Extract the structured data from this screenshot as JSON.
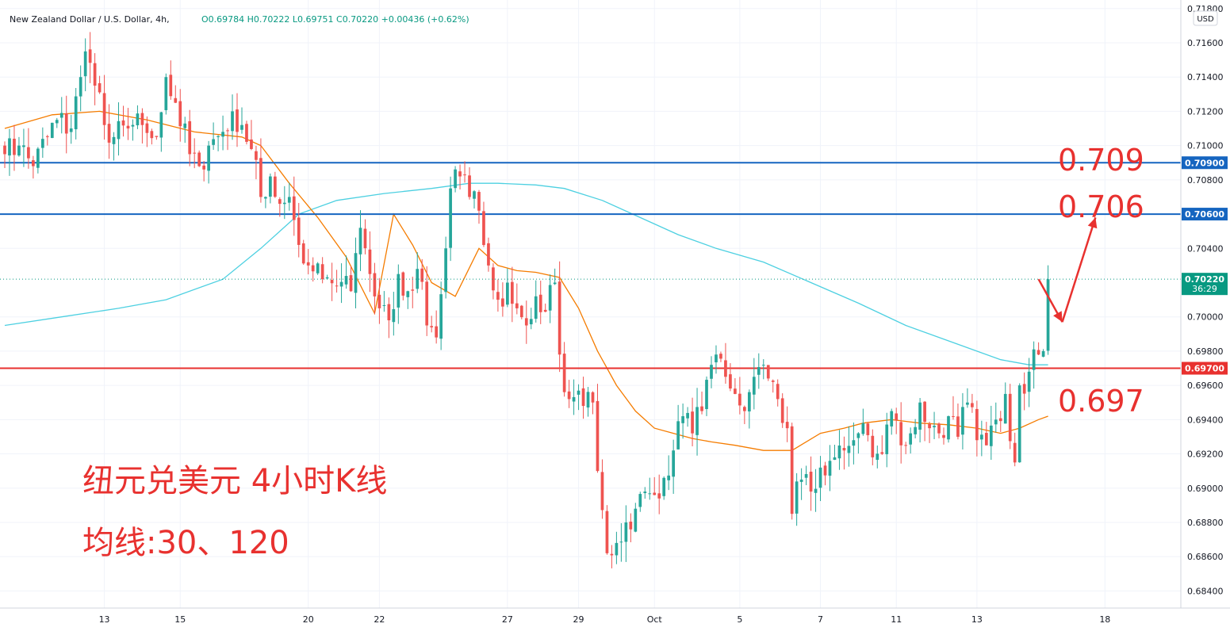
{
  "header": {
    "symbol": "New Zealand Dollar / U.S. Dollar, 4h,",
    "ohlc": "O0.69784 H0.70222 L0.69751 C0.70220 +0.00436 (+0.62%)"
  },
  "currency_badge": "USD",
  "annotations": {
    "level_709": "0.709",
    "level_706": "0.706",
    "level_697": "0.697",
    "title_cn": "纽元兑美元 4小时K线",
    "ma_cn": "均线:30、120"
  },
  "colors": {
    "up": "#26a69a",
    "down": "#ef5350",
    "ma30": "#f57c00",
    "ma120": "#4dd0e1",
    "resistance": "#1565c0",
    "support": "#e8312f",
    "arrow": "#e8312f"
  },
  "chart_data": {
    "type": "candlestick",
    "symbol": "NZDUSD",
    "timeframe": "4h",
    "y_axis": {
      "ticks": [
        "0.71800",
        "0.71600",
        "0.71400",
        "0.71200",
        "0.71000",
        "0.70800",
        "0.70400",
        "0.70000",
        "0.69800",
        "0.69600",
        "0.69400",
        "0.69200",
        "0.69000",
        "0.68800",
        "0.68600",
        "0.68400"
      ],
      "range": [
        0.683,
        0.7185
      ]
    },
    "x_axis": {
      "ticks": [
        {
          "label": "13",
          "index": 21
        },
        {
          "label": "15",
          "index": 37
        },
        {
          "label": "20",
          "index": 64
        },
        {
          "label": "22",
          "index": 79
        },
        {
          "label": "27",
          "index": 106
        },
        {
          "label": "29",
          "index": 121
        },
        {
          "label": "Oct",
          "index": 137
        },
        {
          "label": "5",
          "index": 155
        },
        {
          "label": "7",
          "index": 172
        },
        {
          "label": "11",
          "index": 188
        },
        {
          "label": "13",
          "index": 205
        },
        {
          "label": "18",
          "index": 232
        }
      ],
      "range": [
        0,
        248
      ]
    },
    "price_tags": [
      {
        "value": "0.70900",
        "price": 0.709,
        "color": "#1565c0"
      },
      {
        "value": "0.70600",
        "price": 0.706,
        "color": "#1565c0"
      },
      {
        "value": "0.70220",
        "sub": "36:29",
        "price": 0.7022,
        "color": "#089981"
      },
      {
        "value": "0.69700",
        "price": 0.697,
        "color": "#e8312f"
      }
    ],
    "horizontal_lines": [
      {
        "price": 0.709,
        "color": "#1565c0"
      },
      {
        "price": 0.706,
        "color": "#1565c0"
      },
      {
        "price": 0.697,
        "color": "#e8312f"
      }
    ],
    "last_price": 0.7022,
    "anchors": [
      [
        0,
        0.7095
      ],
      [
        3,
        0.71
      ],
      [
        6,
        0.7088
      ],
      [
        9,
        0.7105
      ],
      [
        11,
        0.7115
      ],
      [
        14,
        0.711
      ],
      [
        16,
        0.714
      ],
      [
        17,
        0.7155
      ],
      [
        19,
        0.7135
      ],
      [
        21,
        0.7112
      ],
      [
        23,
        0.7105
      ],
      [
        26,
        0.711
      ],
      [
        29,
        0.7112
      ],
      [
        32,
        0.7105
      ],
      [
        34,
        0.714
      ],
      [
        36,
        0.7125
      ],
      [
        39,
        0.7095
      ],
      [
        41,
        0.7088
      ],
      [
        43,
        0.71
      ],
      [
        46,
        0.7108
      ],
      [
        48,
        0.712
      ],
      [
        50,
        0.7112
      ],
      [
        52,
        0.7098
      ],
      [
        54,
        0.707
      ],
      [
        56,
        0.7082
      ],
      [
        58,
        0.7066
      ],
      [
        60,
        0.707
      ],
      [
        62,
        0.7042
      ],
      [
        64,
        0.703
      ],
      [
        67,
        0.7022
      ],
      [
        70,
        0.7018
      ],
      [
        73,
        0.7015
      ],
      [
        75,
        0.7052
      ],
      [
        77,
        0.7025
      ],
      [
        79,
        0.7005
      ],
      [
        81,
        0.6998
      ],
      [
        83,
        0.7025
      ],
      [
        85,
        0.7015
      ],
      [
        87,
        0.7028
      ],
      [
        89,
        0.6995
      ],
      [
        91,
        0.6988
      ],
      [
        93,
        0.704
      ],
      [
        94,
        0.7075
      ],
      [
        96,
        0.7082
      ],
      [
        98,
        0.707
      ],
      [
        100,
        0.7062
      ],
      [
        102,
        0.703
      ],
      [
        104,
        0.701
      ],
      [
        106,
        0.702
      ],
      [
        108,
        0.7005
      ],
      [
        110,
        0.6995
      ],
      [
        112,
        0.7012
      ],
      [
        114,
        0.7003
      ],
      [
        116,
        0.702
      ],
      [
        117,
        0.6978
      ],
      [
        119,
        0.6952
      ],
      [
        122,
        0.6948
      ],
      [
        124,
        0.695
      ],
      [
        125,
        0.691
      ],
      [
        127,
        0.6862
      ],
      [
        129,
        0.6868
      ],
      [
        131,
        0.688
      ],
      [
        133,
        0.6888
      ],
      [
        135,
        0.6898
      ],
      [
        137,
        0.6896
      ],
      [
        139,
        0.6906
      ],
      [
        141,
        0.6922
      ],
      [
        143,
        0.6942
      ],
      [
        145,
        0.6932
      ],
      [
        147,
        0.6945
      ],
      [
        149,
        0.6972
      ],
      [
        150,
        0.6978
      ],
      [
        152,
        0.6965
      ],
      [
        154,
        0.6955
      ],
      [
        156,
        0.6945
      ],
      [
        158,
        0.6965
      ],
      [
        160,
        0.6972
      ],
      [
        162,
        0.6962
      ],
      [
        163,
        0.6952
      ],
      [
        165,
        0.6935
      ],
      [
        166,
        0.6885
      ],
      [
        168,
        0.6905
      ],
      [
        170,
        0.6898
      ],
      [
        172,
        0.6912
      ],
      [
        175,
        0.6918
      ],
      [
        177,
        0.6922
      ],
      [
        179,
        0.6928
      ],
      [
        181,
        0.6938
      ],
      [
        183,
        0.6918
      ],
      [
        185,
        0.692
      ],
      [
        187,
        0.6945
      ],
      [
        189,
        0.6925
      ],
      [
        191,
        0.6932
      ],
      [
        193,
        0.695
      ],
      [
        195,
        0.6935
      ],
      [
        197,
        0.6932
      ],
      [
        199,
        0.6942
      ],
      [
        201,
        0.693
      ],
      [
        203,
        0.695
      ],
      [
        205,
        0.6928
      ],
      [
        207,
        0.6925
      ],
      [
        209,
        0.694
      ],
      [
        211,
        0.6955
      ],
      [
        213,
        0.6915
      ],
      [
        214,
        0.696
      ],
      [
        216,
        0.6968
      ],
      [
        218,
        0.6978
      ],
      [
        219,
        0.698
      ],
      [
        220,
        0.7022
      ]
    ],
    "ma30_points": [
      [
        0,
        0.711
      ],
      [
        10,
        0.7118
      ],
      [
        20,
        0.712
      ],
      [
        30,
        0.7115
      ],
      [
        40,
        0.7108
      ],
      [
        50,
        0.7105
      ],
      [
        54,
        0.71
      ],
      [
        60,
        0.7078
      ],
      [
        66,
        0.7058
      ],
      [
        72,
        0.7035
      ],
      [
        78,
        0.7002
      ],
      [
        82,
        0.706
      ],
      [
        86,
        0.7042
      ],
      [
        90,
        0.702
      ],
      [
        95,
        0.7012
      ],
      [
        100,
        0.704
      ],
      [
        104,
        0.703
      ],
      [
        108,
        0.7027
      ],
      [
        112,
        0.7026
      ],
      [
        117,
        0.7023
      ],
      [
        121,
        0.7005
      ],
      [
        125,
        0.698
      ],
      [
        129,
        0.696
      ],
      [
        133,
        0.6945
      ],
      [
        137,
        0.6935
      ],
      [
        141,
        0.6932
      ],
      [
        145,
        0.6929
      ],
      [
        149,
        0.6927
      ],
      [
        154,
        0.6925
      ],
      [
        160,
        0.6922
      ],
      [
        166,
        0.6922
      ],
      [
        172,
        0.6932
      ],
      [
        177,
        0.6935
      ],
      [
        181,
        0.6938
      ],
      [
        187,
        0.694
      ],
      [
        193,
        0.6938
      ],
      [
        199,
        0.6937
      ],
      [
        205,
        0.6935
      ],
      [
        210,
        0.6932
      ],
      [
        214,
        0.6935
      ],
      [
        218,
        0.694
      ],
      [
        220,
        0.6942
      ]
    ],
    "ma120_points": [
      [
        0,
        0.6995
      ],
      [
        12,
        0.7
      ],
      [
        24,
        0.7005
      ],
      [
        34,
        0.701
      ],
      [
        46,
        0.7022
      ],
      [
        54,
        0.704
      ],
      [
        62,
        0.706
      ],
      [
        70,
        0.7068
      ],
      [
        80,
        0.7072
      ],
      [
        90,
        0.7075
      ],
      [
        98,
        0.7078
      ],
      [
        104,
        0.7078
      ],
      [
        112,
        0.7077
      ],
      [
        118,
        0.7075
      ],
      [
        126,
        0.7068
      ],
      [
        134,
        0.7058
      ],
      [
        142,
        0.7048
      ],
      [
        150,
        0.704
      ],
      [
        160,
        0.7032
      ],
      [
        170,
        0.702
      ],
      [
        180,
        0.7008
      ],
      [
        190,
        0.6995
      ],
      [
        200,
        0.6985
      ],
      [
        210,
        0.6975
      ],
      [
        216,
        0.6972
      ],
      [
        220,
        0.6972
      ]
    ],
    "arrow": {
      "from": [
        218,
        0.7022
      ],
      "mid": [
        223,
        0.6997
      ],
      "to": [
        230,
        0.7058
      ]
    }
  }
}
